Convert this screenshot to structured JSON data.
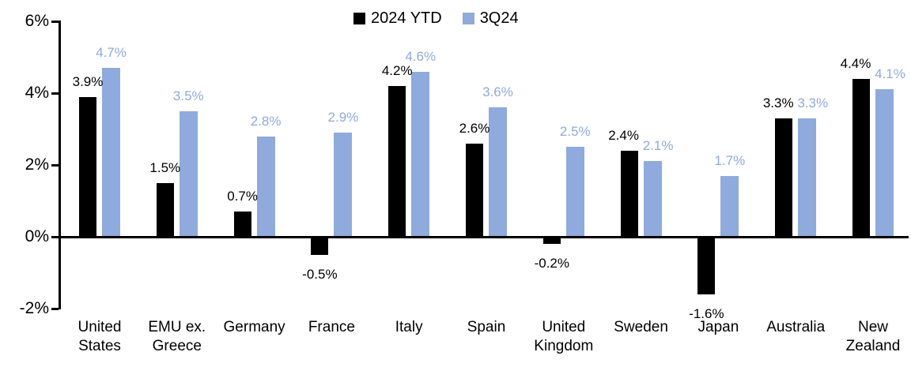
{
  "chart_data": {
    "type": "bar",
    "title": "",
    "categories": [
      "United States",
      "EMU ex. Greece",
      "Germany",
      "France",
      "Italy",
      "Spain",
      "United Kingdom",
      "Sweden",
      "Japan",
      "Australia",
      "New Zealand"
    ],
    "series": [
      {
        "name": "2024 YTD",
        "color": "#000000",
        "values": [
          3.9,
          1.5,
          0.7,
          -0.5,
          4.2,
          2.6,
          -0.2,
          2.4,
          -1.6,
          3.3,
          4.4
        ],
        "value_labels": [
          "3.9%",
          "1.5%",
          "0.7%",
          "-0.5%",
          "4.2%",
          "2.6%",
          "-0.2%",
          "2.4%",
          "-1.6%",
          "3.3%",
          "4.4%"
        ]
      },
      {
        "name": "3Q24",
        "color": "#8FAADC",
        "values": [
          4.7,
          3.5,
          2.8,
          2.9,
          4.6,
          3.6,
          2.5,
          2.1,
          1.7,
          3.3,
          4.1
        ],
        "value_labels": [
          "4.7%",
          "3.5%",
          "2.8%",
          "2.9%",
          "4.6%",
          "3.6%",
          "2.5%",
          "2.1%",
          "1.7%",
          "3.3%",
          "4.1%"
        ]
      }
    ],
    "ylim": [
      -2,
      6
    ],
    "yticks": [
      {
        "value": 6,
        "label": "6%"
      },
      {
        "value": 4,
        "label": "4%"
      },
      {
        "value": 2,
        "label": "2%"
      },
      {
        "value": 0,
        "label": "0%"
      },
      {
        "value": -2,
        "label": "-2%"
      }
    ],
    "xlabel": "",
    "ylabel": "",
    "grid": false,
    "legend_position": "top-center",
    "data_labels": "outside-end"
  }
}
